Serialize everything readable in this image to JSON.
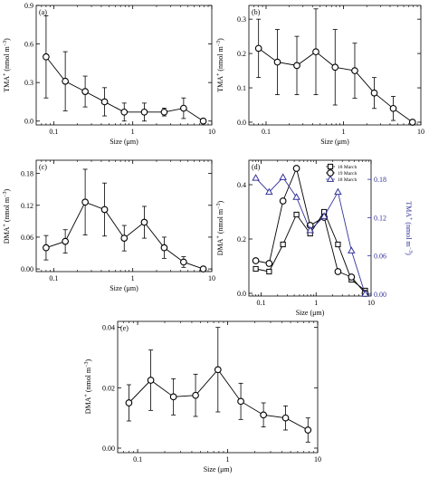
{
  "panels": [
    {
      "id": "a",
      "panel_label": "(a)",
      "xlabel": "Size (μm)",
      "ylabel_main": "TMA",
      "ylabel_sup": "+",
      "ylabel_unit": "(nmol m",
      "ylabel_exp": "−3",
      "ylabel_close": ")",
      "chart_data": {
        "type": "scatter",
        "xscale": "log",
        "xlim": [
          0.06,
          10
        ],
        "ylim": [
          -0.03,
          0.9
        ],
        "xticks": [
          0.1,
          1,
          10
        ],
        "xtick_labels": [
          "0.1",
          "1",
          "10"
        ],
        "yticks": [
          0.0,
          0.3,
          0.6,
          0.9
        ],
        "ytick_labels": [
          "0.0",
          "0.3",
          "0.6",
          "0.9"
        ],
        "series": [
          {
            "name": "",
            "marker": "circle",
            "color": "#000000",
            "x": [
              0.08,
              0.14,
              0.25,
              0.44,
              0.78,
              1.4,
              2.5,
              4.4,
              7.8
            ],
            "y": [
              0.5,
              0.31,
              0.23,
              0.15,
              0.07,
              0.07,
              0.07,
              0.1,
              0.0
            ],
            "err": [
              0.32,
              0.23,
              0.12,
              0.11,
              0.07,
              0.07,
              0.03,
              0.08,
              0.0
            ]
          }
        ]
      }
    },
    {
      "id": "b",
      "panel_label": "(b)",
      "xlabel": "Size (μm)",
      "ylabel_main": "TMA",
      "ylabel_sup": "+",
      "ylabel_unit": "(nmol m",
      "ylabel_exp": "−3",
      "ylabel_close": ")",
      "chart_data": {
        "type": "scatter",
        "xscale": "log",
        "xlim": [
          0.06,
          10
        ],
        "ylim": [
          -0.008,
          0.34
        ],
        "xticks": [
          0.1,
          1,
          10
        ],
        "xtick_labels": [
          "0.1",
          "1",
          "10"
        ],
        "yticks": [
          0.0,
          0.1,
          0.2,
          0.3
        ],
        "ytick_labels": [
          "0.0",
          "0.1",
          "0.2",
          "0.3"
        ],
        "series": [
          {
            "name": "",
            "marker": "circle",
            "color": "#000000",
            "x": [
              0.08,
              0.14,
              0.25,
              0.44,
              0.78,
              1.4,
              2.5,
              4.4,
              7.8
            ],
            "y": [
              0.215,
              0.175,
              0.165,
              0.205,
              0.16,
              0.15,
              0.085,
              0.04,
              0.0
            ],
            "err": [
              0.085,
              0.095,
              0.085,
              0.125,
              0.11,
              0.08,
              0.045,
              0.035,
              0.0
            ]
          }
        ]
      }
    },
    {
      "id": "c",
      "panel_label": "(c)",
      "xlabel": "Size (μm)",
      "ylabel_main": "DMA",
      "ylabel_sup": "+",
      "ylabel_unit": "(nmol m",
      "ylabel_exp": "−3",
      "ylabel_close": ")",
      "chart_data": {
        "type": "scatter",
        "xscale": "log",
        "xlim": [
          0.06,
          10
        ],
        "ylim": [
          -0.005,
          0.205
        ],
        "xticks": [
          0.1,
          1,
          10
        ],
        "xtick_labels": [
          "0.1",
          "1",
          "10"
        ],
        "yticks": [
          0.0,
          0.06,
          0.12,
          0.18
        ],
        "ytick_labels": [
          "0.00",
          "0.06",
          "0.12",
          "0.18"
        ],
        "series": [
          {
            "name": "",
            "marker": "circle",
            "color": "#000000",
            "x": [
              0.08,
              0.14,
              0.25,
              0.44,
              0.78,
              1.4,
              2.5,
              4.4,
              7.8
            ],
            "y": [
              0.04,
              0.052,
              0.126,
              0.112,
              0.058,
              0.088,
              0.04,
              0.013,
              0.0
            ],
            "err": [
              0.023,
              0.022,
              0.062,
              0.05,
              0.024,
              0.03,
              0.02,
              0.01,
              0.0
            ]
          }
        ]
      }
    },
    {
      "id": "d",
      "panel_label": "(d)",
      "xlabel": "Size (μm)",
      "ylabel_main": "DMA",
      "ylabel_sup": "+",
      "ylabel_unit": "(nmol m",
      "ylabel_exp": "−3",
      "ylabel_close": ")",
      "ylabel2_main": "TMA",
      "ylabel2_sup": "+",
      "ylabel2_unit": "(nmol m",
      "ylabel2_exp": "−3",
      "ylabel2_close": ")",
      "chart_data": {
        "type": "line",
        "xscale": "log",
        "xlim": [
          0.06,
          10
        ],
        "ylim": [
          -0.01,
          0.49
        ],
        "y2lim": [
          -0.003,
          0.21
        ],
        "xticks": [
          0.1,
          1,
          10
        ],
        "xtick_labels": [
          "0.1",
          "1",
          "10"
        ],
        "yticks": [
          0.0,
          0.2,
          0.4
        ],
        "ytick_labels": [
          "0.0",
          "0.2",
          "0.4"
        ],
        "y2ticks": [
          0.0,
          0.06,
          0.12,
          0.18
        ],
        "y2tick_labels": [
          "0.00",
          "0.06",
          "0.12",
          "0.18"
        ],
        "legend_position": "top-right",
        "series": [
          {
            "name": "18 March",
            "marker": "square",
            "color": "#000000",
            "axis": "left",
            "x": [
              0.08,
              0.14,
              0.25,
              0.44,
              0.78,
              1.4,
              2.5,
              4.4,
              7.8
            ],
            "y": [
              0.09,
              0.08,
              0.18,
              0.29,
              0.22,
              0.3,
              0.18,
              0.05,
              0.01
            ]
          },
          {
            "name": "19 March",
            "marker": "circle",
            "color": "#000000",
            "axis": "left",
            "x": [
              0.08,
              0.14,
              0.25,
              0.44,
              0.78,
              1.4,
              2.5,
              4.4,
              7.8
            ],
            "y": [
              0.12,
              0.11,
              0.34,
              0.46,
              0.25,
              0.28,
              0.08,
              0.06,
              0.0
            ]
          },
          {
            "name": "18 March",
            "marker": "triangle",
            "color": "#333399",
            "axis": "right",
            "x": [
              0.08,
              0.14,
              0.25,
              0.44,
              0.78,
              1.4,
              2.5,
              4.4,
              7.8
            ],
            "y": [
              0.182,
              0.16,
              0.183,
              0.152,
              0.1,
              0.122,
              0.16,
              0.068,
              0.0
            ]
          }
        ]
      }
    },
    {
      "id": "e",
      "panel_label": "(e)",
      "xlabel": "Size (μm)",
      "ylabel_main": "DMA",
      "ylabel_sup": "+",
      "ylabel_unit": "(nmol m",
      "ylabel_exp": "−3",
      "ylabel_close": ")",
      "chart_data": {
        "type": "scatter",
        "xscale": "log",
        "xlim": [
          0.06,
          10
        ],
        "ylim": [
          -0.0015,
          0.042
        ],
        "xticks": [
          0.1,
          1,
          10
        ],
        "xtick_labels": [
          "0.1",
          "1",
          "10"
        ],
        "yticks": [
          0.0,
          0.02,
          0.04
        ],
        "ytick_labels": [
          "0.00",
          "0.02",
          "0.04"
        ],
        "series": [
          {
            "name": "",
            "marker": "circle",
            "color": "#000000",
            "x": [
              0.08,
              0.14,
              0.25,
              0.44,
              0.78,
              1.4,
              2.5,
              4.4,
              7.8
            ],
            "y": [
              0.015,
              0.0225,
              0.017,
              0.0175,
              0.026,
              0.0155,
              0.011,
              0.01,
              0.006
            ],
            "err": [
              0.006,
              0.01,
              0.006,
              0.007,
              0.014,
              0.006,
              0.004,
              0.004,
              0.004
            ]
          }
        ]
      }
    }
  ]
}
